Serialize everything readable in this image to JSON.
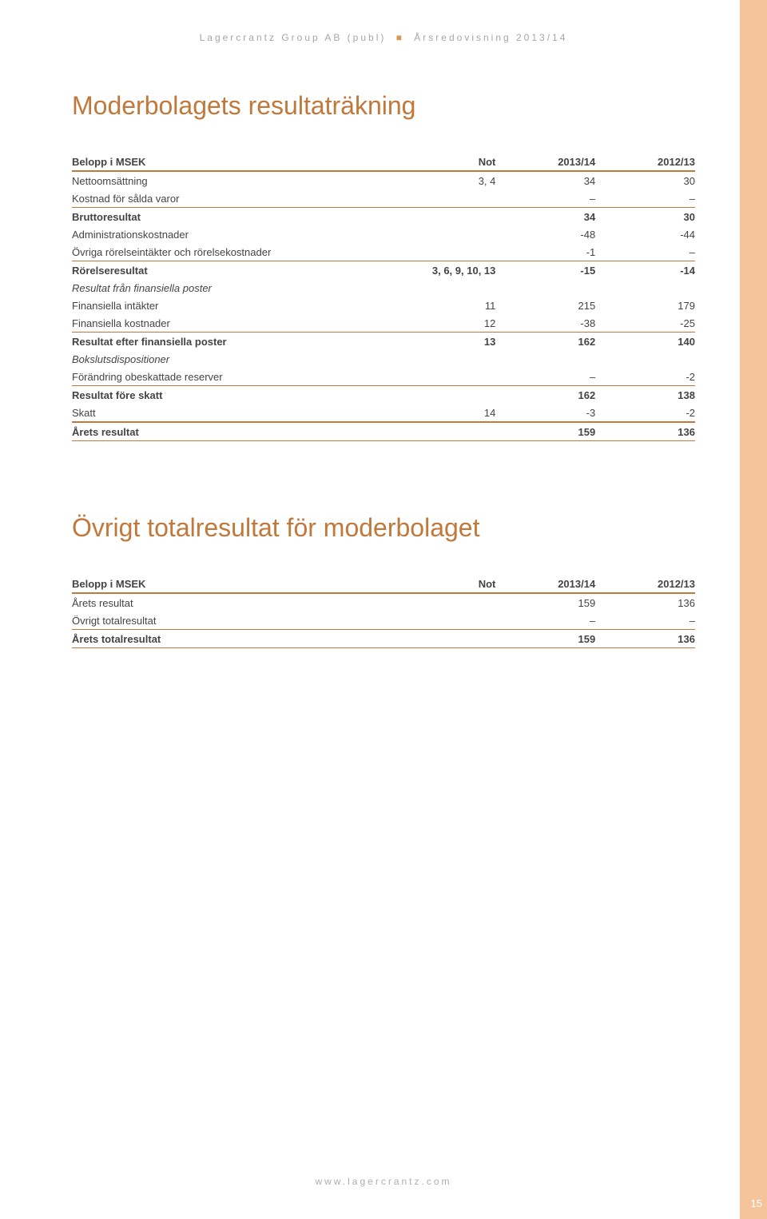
{
  "running_head": {
    "left": "Lagercrantz Group AB (publ)",
    "right": "Årsredovisning 2013/14"
  },
  "title_1": "Moderbolagets resultaträkning",
  "title_2": "Övrigt totalresultat för moderbolaget",
  "table1": {
    "header": {
      "label": "Belopp i MSEK",
      "not": "Not",
      "c1": "2013/14",
      "c2": "2012/13"
    },
    "rows": {
      "nettooms": {
        "label": "Nettoomsättning",
        "not": "3, 4",
        "c1": "34",
        "c2": "30"
      },
      "kostnad": {
        "label": "Kostnad för sålda varor",
        "not": "",
        "c1": "–",
        "c2": "–"
      },
      "brutto": {
        "label": "Bruttoresultat",
        "not": "",
        "c1": "34",
        "c2": "30"
      },
      "admin": {
        "label": "Administrationskostnader",
        "not": "",
        "c1": "-48",
        "c2": "-44"
      },
      "ovrint": {
        "label": "Övriga rörelseintäkter och rörelsekostnader",
        "not": "",
        "c1": "-1",
        "c2": "–"
      },
      "rorelse": {
        "label": "Rörelseresultat",
        "not": "3, 6, 9, 10, 13",
        "c1": "-15",
        "c2": "-14"
      },
      "finposter": {
        "label": "Resultat från finansiella poster",
        "not": "",
        "c1": "",
        "c2": ""
      },
      "finint": {
        "label": "Finansiella intäkter",
        "not": "11",
        "c1": "215",
        "c2": "179"
      },
      "finkost": {
        "label": "Finansiella kostnader",
        "not": "12",
        "c1": "-38",
        "c2": "-25"
      },
      "efterfin": {
        "label": "Resultat efter finansiella poster",
        "not": "13",
        "c1": "162",
        "c2": "140"
      },
      "bokslut": {
        "label": "Bokslutsdispositioner",
        "not": "",
        "c1": "",
        "c2": ""
      },
      "obeskatt": {
        "label": "Förändring obeskattade reserver",
        "not": "",
        "c1": "–",
        "c2": "-2"
      },
      "foreskatt": {
        "label": "Resultat före skatt",
        "not": "",
        "c1": "162",
        "c2": "138"
      },
      "skatt": {
        "label": "Skatt",
        "not": "14",
        "c1": "-3",
        "c2": "-2"
      },
      "aretsres": {
        "label": "Årets resultat",
        "not": "",
        "c1": "159",
        "c2": "136"
      }
    }
  },
  "table2": {
    "header": {
      "label": "Belopp i MSEK",
      "not": "Not",
      "c1": "2013/14",
      "c2": "2012/13"
    },
    "rows": {
      "aretsres": {
        "label": "Årets resultat",
        "not": "",
        "c1": "159",
        "c2": "136"
      },
      "ovrigttot": {
        "label": "Övrigt totalresultat",
        "not": "",
        "c1": "–",
        "c2": "–"
      },
      "aretstot": {
        "label": "Årets totalresultat",
        "not": "",
        "c1": "159",
        "c2": "136"
      }
    }
  },
  "footer": "www.lagercrantz.com",
  "page_number": "15",
  "colors": {
    "accent": "#c0783b",
    "side_stripe": "#f5c49a",
    "text": "#444444",
    "running_head": "#a8a6a0",
    "background": "#ffffff"
  }
}
